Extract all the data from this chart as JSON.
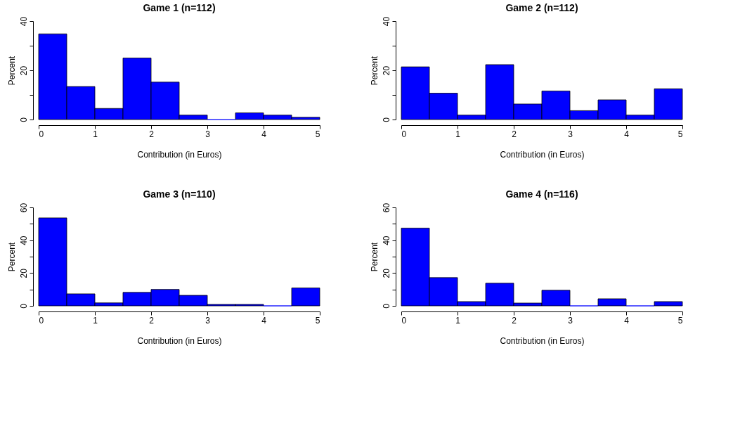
{
  "chart_data": [
    {
      "type": "histogram",
      "title": "Game 1 (n=112)",
      "xlabel": "Contribution (in Euros)",
      "ylabel": "Percent",
      "bins": [
        0,
        0.5,
        1,
        1.5,
        2,
        2.5,
        3,
        3.5,
        4,
        4.5,
        5
      ],
      "values": [
        34.8,
        13.4,
        4.5,
        25.0,
        15.2,
        1.8,
        0,
        2.7,
        1.8,
        0.9
      ],
      "color": "#0000ff",
      "xlim": [
        0,
        5
      ],
      "xticks": [
        0,
        1,
        2,
        3,
        4,
        5
      ],
      "ylim": [
        0,
        40
      ],
      "yticks": [
        0,
        {
          "value": 10,
          "label": null
        },
        20,
        {
          "value": 30,
          "label": null
        },
        40
      ]
    },
    {
      "type": "histogram",
      "title": "Game 2 (n=112)",
      "xlabel": "Contribution (in Euros)",
      "ylabel": "Percent",
      "bins": [
        0,
        0.5,
        1,
        1.5,
        2,
        2.5,
        3,
        3.5,
        4,
        4.5,
        5
      ],
      "values": [
        21.4,
        10.7,
        1.8,
        22.3,
        6.3,
        11.6,
        3.6,
        8.0,
        1.8,
        12.5
      ],
      "color": "#0000ff",
      "xlim": [
        0,
        5
      ],
      "xticks": [
        0,
        1,
        2,
        3,
        4,
        5
      ],
      "ylim": [
        0,
        40
      ],
      "yticks": [
        0,
        {
          "value": 10,
          "label": null
        },
        20,
        {
          "value": 30,
          "label": null
        },
        40
      ]
    },
    {
      "type": "histogram",
      "title": "Game 3 (n=110)",
      "xlabel": "Contribution (in Euros)",
      "ylabel": "Percent",
      "bins": [
        0,
        0.5,
        1,
        1.5,
        2,
        2.5,
        3,
        3.5,
        4,
        4.5,
        5
      ],
      "values": [
        53.6,
        7.3,
        1.8,
        8.2,
        10.0,
        6.4,
        0.9,
        0.9,
        0,
        10.9
      ],
      "color": "#0000ff",
      "xlim": [
        0,
        5
      ],
      "xticks": [
        0,
        1,
        2,
        3,
        4,
        5
      ],
      "ylim": [
        0,
        60
      ],
      "yticks": [
        0,
        {
          "value": 10,
          "label": null
        },
        20,
        {
          "value": 30,
          "label": null
        },
        40,
        {
          "value": 50,
          "label": null
        },
        60
      ]
    },
    {
      "type": "histogram",
      "title": "Game 4 (n=116)",
      "xlabel": "Contribution (in Euros)",
      "ylabel": "Percent",
      "bins": [
        0,
        0.5,
        1,
        1.5,
        2,
        2.5,
        3,
        3.5,
        4,
        4.5,
        5
      ],
      "values": [
        47.4,
        17.2,
        2.6,
        13.8,
        1.7,
        9.5,
        0,
        4.3,
        0,
        2.6
      ],
      "color": "#0000ff",
      "xlim": [
        0,
        5
      ],
      "xticks": [
        0,
        1,
        2,
        3,
        4,
        5
      ],
      "ylim": [
        0,
        60
      ],
      "yticks": [
        0,
        {
          "value": 10,
          "label": null
        },
        20,
        {
          "value": 30,
          "label": null
        },
        40,
        {
          "value": 50,
          "label": null
        },
        60
      ]
    }
  ]
}
